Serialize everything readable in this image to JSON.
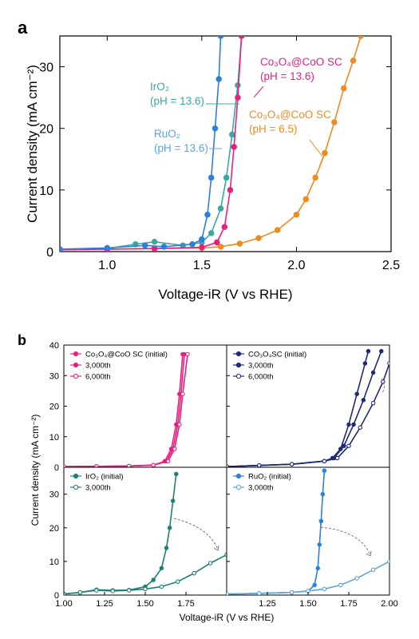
{
  "colors": {
    "pink": "#e8207f",
    "teal": "#3aa8a0",
    "blue": "#2b7fde",
    "orange": "#f08a1e",
    "navy": "#1e2a78",
    "darkteal": "#207f77",
    "lightblue": "#5aa6dd",
    "axis": "#000000",
    "arrow": "#777777"
  },
  "panel_labels": {
    "a": "a",
    "b": "b"
  },
  "chart_data": [
    {
      "id": "a",
      "type": "line",
      "xlabel": "Voltage-iR (V vs RHE)",
      "ylabel": "Current density (mA cm⁻²)",
      "xlim": [
        0.75,
        2.5
      ],
      "ylim": [
        0,
        35
      ],
      "xticks": [
        "1.0",
        "1.5",
        "2.0",
        "2.5"
      ],
      "yticks": [
        "0",
        "10",
        "20",
        "30"
      ],
      "annotations": [
        {
          "id": "ann-co3o4-136",
          "lines": [
            "Co₃O₄@CoO SC",
            "(pH = 13.6)"
          ],
          "color": "pink"
        },
        {
          "id": "ann-iro2",
          "lines": [
            "IrO₂",
            "(pH = 13.6)"
          ],
          "color": "teal"
        },
        {
          "id": "ann-co3o4-65",
          "lines": [
            "Co₃O₄@CoO SC",
            "(pH = 6.5)"
          ],
          "color": "orange"
        },
        {
          "id": "ann-ruo2",
          "lines": [
            "RuO₂",
            "(pH = 13.6)"
          ],
          "color": "lightblue"
        }
      ],
      "series": [
        {
          "key": "orange",
          "color": "orange",
          "x": [
            0.75,
            1.0,
            1.25,
            1.5,
            1.6,
            1.7,
            1.8,
            1.9,
            2.0,
            2.05,
            2.1,
            2.15,
            2.2,
            2.25,
            2.3,
            2.34
          ],
          "y": [
            0.3,
            0.4,
            0.5,
            0.6,
            0.8,
            1.3,
            2.2,
            3.5,
            6.0,
            8.5,
            12.0,
            16.0,
            21.0,
            26.5,
            31.0,
            35.0
          ]
        },
        {
          "key": "teal",
          "color": "teal",
          "x": [
            0.75,
            1.0,
            1.15,
            1.25,
            1.4,
            1.5,
            1.55,
            1.6,
            1.63,
            1.66,
            1.69,
            1.71
          ],
          "y": [
            0.3,
            0.5,
            1.2,
            1.6,
            1.0,
            1.5,
            3.0,
            7.0,
            12.0,
            19.0,
            27.0,
            35.0
          ]
        },
        {
          "key": "pink",
          "color": "pink",
          "x": [
            0.75,
            1.0,
            1.25,
            1.5,
            1.58,
            1.62,
            1.65,
            1.67,
            1.69,
            1.71
          ],
          "y": [
            0.3,
            0.4,
            0.5,
            0.7,
            1.5,
            4.0,
            10.0,
            17.0,
            25.0,
            35.0
          ]
        },
        {
          "key": "blue",
          "color": "blue",
          "x": [
            0.75,
            1.0,
            1.2,
            1.3,
            1.45,
            1.5,
            1.53,
            1.55,
            1.57,
            1.59,
            1.6
          ],
          "y": [
            0.4,
            0.6,
            1.0,
            0.8,
            1.2,
            2.0,
            6.0,
            12.0,
            20.0,
            28.0,
            35.0
          ]
        }
      ]
    },
    {
      "id": "b",
      "type": "line",
      "xlabel": "Voltage-iR (V vs RHE)",
      "ylabel": "Current density (mA cm⁻²)",
      "xlim": [
        1.0,
        2.0
      ],
      "ylim": [
        0,
        40
      ],
      "xticks_left": [
        "1.00",
        "1.25",
        "1.50",
        "1.75"
      ],
      "xticks_right": [
        "1.25",
        "1.50",
        "1.75",
        "2.00"
      ],
      "yticks_top": [
        "0",
        "10",
        "20",
        "30",
        "40"
      ],
      "yticks_bottom": [
        "0",
        "10",
        "20",
        "30"
      ],
      "subplots": [
        {
          "id": "b-tl",
          "legend": [
            {
              "label": "Co₃O₄@CoO SC (initial)",
              "color": "pink",
              "marker": "filled"
            },
            {
              "label": "3,000th",
              "color": "pink",
              "marker": "filled"
            },
            {
              "label": "6,000th",
              "color": "pink",
              "marker": "open"
            }
          ],
          "series": [
            {
              "color": "pink",
              "marker": "filled",
              "x": [
                1.0,
                1.2,
                1.4,
                1.55,
                1.62,
                1.66,
                1.69,
                1.71,
                1.73
              ],
              "y": [
                0.2,
                0.3,
                0.4,
                0.7,
                2.0,
                6.0,
                14.0,
                24.0,
                37.0
              ]
            },
            {
              "color": "pink",
              "marker": "filled",
              "x": [
                1.0,
                1.2,
                1.4,
                1.55,
                1.63,
                1.67,
                1.7,
                1.72,
                1.74
              ],
              "y": [
                0.2,
                0.3,
                0.4,
                0.7,
                2.0,
                6.0,
                14.0,
                24.0,
                37.0
              ]
            },
            {
              "color": "pink",
              "marker": "open",
              "x": [
                1.0,
                1.2,
                1.4,
                1.55,
                1.64,
                1.68,
                1.71,
                1.73,
                1.76
              ],
              "y": [
                0.2,
                0.3,
                0.4,
                0.7,
                2.0,
                6.0,
                14.0,
                24.0,
                37.0
              ]
            }
          ]
        },
        {
          "id": "b-tr",
          "legend": [
            {
              "label": "CO₃O₄SC (initial)",
              "color": "navy",
              "marker": "filled"
            },
            {
              "label": "3,000th",
              "color": "navy",
              "marker": "filled"
            },
            {
              "label": "6,000th",
              "color": "navy",
              "marker": "open"
            }
          ],
          "series": [
            {
              "color": "navy",
              "marker": "filled",
              "x": [
                1.0,
                1.2,
                1.4,
                1.6,
                1.65,
                1.7,
                1.75,
                1.8,
                1.85,
                1.87
              ],
              "y": [
                0.2,
                0.6,
                1.0,
                2.0,
                3.0,
                6.0,
                14.0,
                24.0,
                34.0,
                38.0
              ]
            },
            {
              "color": "navy",
              "marker": "filled",
              "x": [
                1.0,
                1.2,
                1.4,
                1.6,
                1.66,
                1.72,
                1.78,
                1.84,
                1.9,
                1.95
              ],
              "y": [
                0.2,
                0.6,
                1.0,
                2.0,
                3.0,
                7.0,
                14.0,
                22.0,
                31.0,
                38.0
              ]
            },
            {
              "color": "navy",
              "marker": "open",
              "x": [
                1.0,
                1.2,
                1.4,
                1.6,
                1.68,
                1.75,
                1.82,
                1.9,
                1.96,
                2.0
              ],
              "y": [
                0.2,
                0.6,
                1.0,
                2.0,
                3.0,
                7.0,
                13.0,
                21.0,
                28.0,
                34.0
              ]
            }
          ]
        },
        {
          "id": "b-bl",
          "legend": [
            {
              "label": "IrO₂ (initial)",
              "color": "darkteal",
              "marker": "filled"
            },
            {
              "label": "3,000th",
              "color": "darkteal",
              "marker": "open"
            }
          ],
          "series": [
            {
              "color": "darkteal",
              "marker": "filled",
              "x": [
                1.0,
                1.1,
                1.2,
                1.3,
                1.4,
                1.5,
                1.55,
                1.6,
                1.63,
                1.65,
                1.67,
                1.69
              ],
              "y": [
                0.3,
                0.8,
                1.6,
                1.4,
                1.5,
                2.5,
                4.5,
                8.0,
                14.0,
                20.0,
                28.0,
                36.0
              ]
            },
            {
              "color": "darkteal",
              "marker": "open",
              "x": [
                1.0,
                1.1,
                1.2,
                1.3,
                1.4,
                1.5,
                1.6,
                1.7,
                1.8,
                1.9,
                2.0
              ],
              "y": [
                0.3,
                0.8,
                1.4,
                1.2,
                1.4,
                1.8,
                2.5,
                4.0,
                6.5,
                9.5,
                12.0
              ]
            }
          ]
        },
        {
          "id": "b-br",
          "legend": [
            {
              "label": "RuO₂ (initial)",
              "color": "blue",
              "marker": "filled"
            },
            {
              "label": "3,000th",
              "color": "lightblue",
              "marker": "open"
            }
          ],
          "series": [
            {
              "color": "blue",
              "marker": "filled",
              "x": [
                1.0,
                1.2,
                1.4,
                1.5,
                1.54,
                1.56,
                1.57,
                1.58,
                1.59,
                1.6
              ],
              "y": [
                0.3,
                0.5,
                0.8,
                1.2,
                3.0,
                8.0,
                15.0,
                22.0,
                30.0,
                37.0
              ]
            },
            {
              "color": "lightblue",
              "marker": "open",
              "x": [
                1.0,
                1.2,
                1.4,
                1.5,
                1.6,
                1.7,
                1.8,
                1.9,
                2.0
              ],
              "y": [
                0.3,
                0.5,
                0.8,
                1.2,
                1.8,
                3.0,
                5.0,
                7.5,
                10.0
              ]
            }
          ]
        }
      ]
    }
  ]
}
